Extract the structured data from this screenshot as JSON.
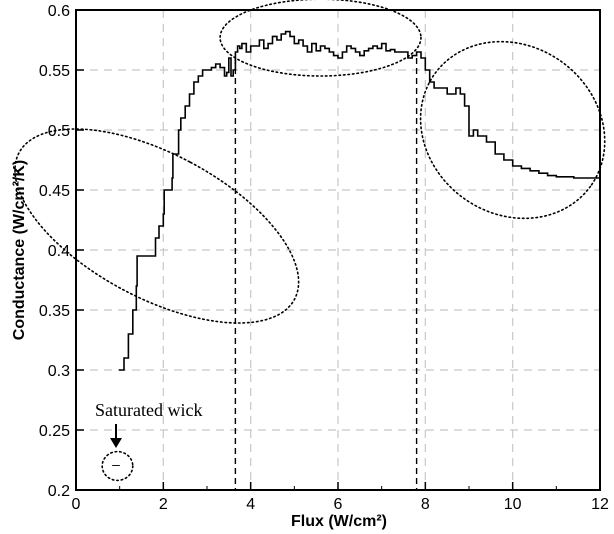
{
  "chart_data": {
    "type": "line",
    "title": "",
    "xlabel": "Flux (W/cm²)",
    "ylabel": "Conductance (W/cm²/K)",
    "xlim": [
      0,
      12
    ],
    "ylim": [
      0.2,
      0.6
    ],
    "grid": true,
    "xticks": [
      "0",
      "2",
      "4",
      "6",
      "8",
      "10",
      "12"
    ],
    "yticks": [
      "0.2",
      "0.25",
      "0.3",
      "0.35",
      "0.4",
      "0.45",
      "0.5",
      "0.55",
      "0.6"
    ],
    "series": [
      {
        "x": [
          0.98,
          1.1,
          1.2,
          1.3,
          1.38,
          1.4,
          1.8,
          1.82,
          1.9,
          2.0,
          2.02,
          2.2,
          2.22,
          2.35,
          2.4,
          2.5,
          2.6,
          2.7,
          2.8,
          2.9,
          3.0,
          3.1,
          3.2,
          3.3,
          3.4,
          3.45,
          3.5,
          3.55,
          3.6,
          3.65,
          3.7,
          3.75,
          3.8,
          3.9,
          4.0,
          4.2,
          4.3,
          4.4,
          4.5,
          4.6,
          4.7,
          4.8,
          4.9,
          5.0,
          5.1,
          5.2,
          5.3,
          5.4,
          5.5,
          5.6,
          5.7,
          5.8,
          5.9,
          6.0,
          6.1,
          6.2,
          6.3,
          6.4,
          6.5,
          6.6,
          6.7,
          6.8,
          6.9,
          7.0,
          7.1,
          7.2,
          7.3,
          7.4,
          7.5,
          7.6,
          7.7,
          7.8,
          7.9,
          8.0,
          8.1,
          8.2,
          8.4,
          8.5,
          8.6,
          8.7,
          8.8,
          8.9,
          9.0,
          9.1,
          9.2,
          9.4,
          9.6,
          9.8,
          10.0,
          10.2,
          10.4,
          10.6,
          10.8,
          11.0,
          11.2,
          11.4,
          11.6,
          11.8,
          12.0
        ],
        "y": [
          0.3,
          0.31,
          0.33,
          0.35,
          0.37,
          0.395,
          0.395,
          0.41,
          0.42,
          0.43,
          0.45,
          0.46,
          0.48,
          0.5,
          0.51,
          0.52,
          0.53,
          0.54,
          0.545,
          0.55,
          0.55,
          0.552,
          0.555,
          0.552,
          0.545,
          0.548,
          0.56,
          0.545,
          0.55,
          0.565,
          0.57,
          0.568,
          0.572,
          0.565,
          0.57,
          0.575,
          0.568,
          0.572,
          0.578,
          0.575,
          0.58,
          0.582,
          0.578,
          0.572,
          0.575,
          0.57,
          0.565,
          0.572,
          0.566,
          0.57,
          0.568,
          0.565,
          0.562,
          0.56,
          0.565,
          0.57,
          0.568,
          0.565,
          0.562,
          0.566,
          0.568,
          0.57,
          0.568,
          0.572,
          0.566,
          0.567,
          0.565,
          0.565,
          0.565,
          0.56,
          0.562,
          0.565,
          0.56,
          0.55,
          0.54,
          0.535,
          0.535,
          0.53,
          0.53,
          0.535,
          0.53,
          0.52,
          0.495,
          0.5,
          0.495,
          0.49,
          0.48,
          0.475,
          0.47,
          0.468,
          0.466,
          0.464,
          0.462,
          0.461,
          0.461,
          0.46,
          0.46,
          0.46,
          0.458
        ]
      }
    ],
    "vlines": [
      3.65,
      7.8
    ],
    "ellipses": [
      {
        "cx": 1.85,
        "cy": 0.42,
        "rx": 1.65,
        "ry": 0.13
      },
      {
        "cx": 5.6,
        "cy": 0.577,
        "rx": 2.3,
        "ry": 0.032
      },
      {
        "cx": 10.0,
        "cy": 0.5,
        "rx": 2.2,
        "ry": 0.07
      },
      {
        "cx": 0.95,
        "cy": 0.22,
        "rx": 0.35,
        "ry": 0.012
      }
    ],
    "annotation": {
      "text": "Saturated wick",
      "marker_x": 0.95,
      "marker_y": 0.22,
      "marker_symbol": "–"
    }
  }
}
